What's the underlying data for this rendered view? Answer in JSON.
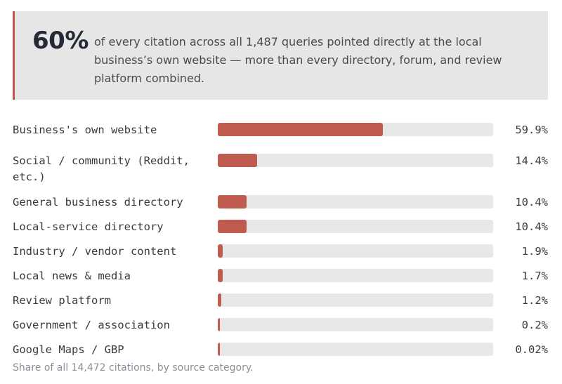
{
  "callout": {
    "stat": "60%",
    "text": "of every citation across all 1,487 queries pointed directly at the local business’s own website — more than every directory, forum, and review platform combined."
  },
  "caption": "Share of all 14,472 citations, by source category.",
  "colors": {
    "bar_fill": "#bf5c4f",
    "bar_track": "#e8e8e8",
    "callout_background": "#e6e6e6",
    "callout_accent": "#c0564a"
  },
  "chart_data": {
    "type": "bar",
    "orientation": "horizontal",
    "unit": "%",
    "xlim": [
      0,
      100
    ],
    "grid": false,
    "categories": [
      "Business's own website",
      "Social / community (Reddit, etc.)",
      "General business directory",
      "Local-service directory",
      "Industry / vendor content",
      "Local news & media",
      "Review platform",
      "Government / association",
      "Google Maps / GBP"
    ],
    "values": [
      59.9,
      14.4,
      10.4,
      10.4,
      1.9,
      1.7,
      1.2,
      0.2,
      0.02
    ],
    "value_labels": [
      "59.9%",
      "14.4%",
      "10.4%",
      "10.4%",
      "1.9%",
      "1.7%",
      "1.2%",
      "0.2%",
      "0.02%"
    ]
  }
}
